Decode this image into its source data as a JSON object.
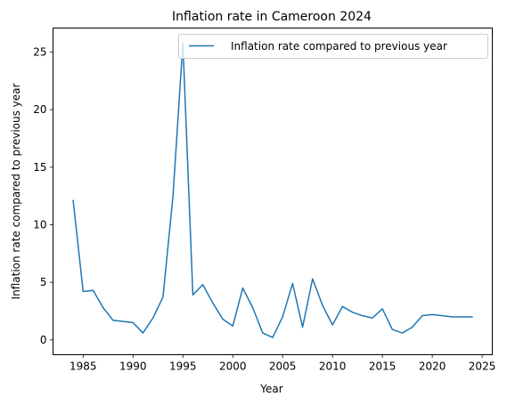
{
  "chart_data": {
    "type": "line",
    "title": "Inflation rate in Cameroon 2024",
    "xlabel": "Year",
    "ylabel": "Inflation rate compared to previous year",
    "xlim": [
      1981.98,
      2026.02
    ],
    "ylim": [
      -1.29,
      27.09
    ],
    "xticks": [
      1985,
      1990,
      1995,
      2000,
      2005,
      2010,
      2015,
      2020,
      2025
    ],
    "yticks": [
      0,
      5,
      10,
      15,
      20,
      25
    ],
    "grid": false,
    "legend_position": "top-right",
    "series": [
      {
        "name": "Inflation rate compared to previous year",
        "color": "#1f77b4",
        "x": [
          1984,
          1985,
          1986,
          1987,
          1988,
          1989,
          1990,
          1991,
          1992,
          1993,
          1994,
          1995,
          1996,
          1997,
          1998,
          1999,
          2000,
          2001,
          2002,
          2003,
          2004,
          2005,
          2006,
          2007,
          2008,
          2009,
          2010,
          2011,
          2012,
          2013,
          2014,
          2015,
          2016,
          2017,
          2018,
          2019,
          2020,
          2021,
          2022,
          2023,
          2024
        ],
        "y": [
          12.1,
          4.2,
          4.3,
          2.8,
          1.7,
          1.6,
          1.5,
          0.6,
          1.9,
          3.7,
          12.4,
          25.8,
          3.9,
          4.8,
          3.2,
          1.8,
          1.2,
          4.5,
          2.8,
          0.6,
          0.2,
          2.0,
          4.9,
          1.1,
          5.3,
          3.0,
          1.3,
          2.9,
          2.4,
          2.1,
          1.9,
          2.7,
          0.9,
          0.6,
          1.1,
          2.1,
          2.2,
          2.1,
          2.0,
          2.0,
          2.0
        ]
      }
    ]
  }
}
